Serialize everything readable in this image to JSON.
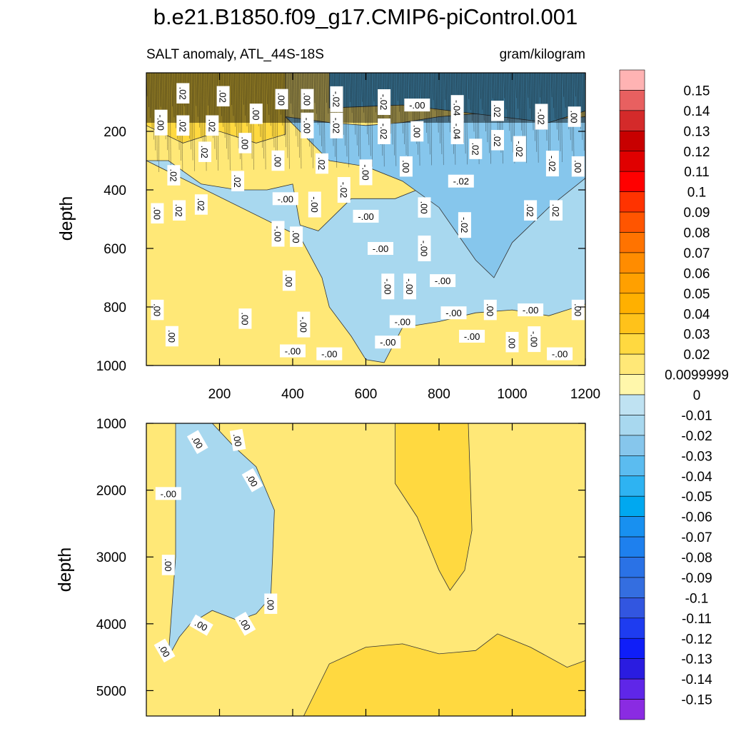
{
  "chart_data": {
    "type": "heatmap",
    "subtype": "filled-contour",
    "title": "b.e21.B1850.f09_g17.CMIP6-piControl.001",
    "subtitle_left": "SALT anomaly, ATL_44S-18S",
    "subtitle_right": "gram/kilogram",
    "xlabel": "",
    "x_range": [
      0,
      1200
    ],
    "x_ticks": [
      "200",
      "400",
      "600",
      "800",
      "1000",
      "1200"
    ],
    "x_tick_values": [
      200,
      400,
      600,
      800,
      1000,
      1200
    ],
    "panels": [
      {
        "name": "upper",
        "ylabel": "depth",
        "y_range": [
          0,
          1000
        ],
        "y_ticks": [
          "200",
          "400",
          "600",
          "800",
          "1000"
        ],
        "y_tick_values": [
          200,
          400,
          600,
          800,
          1000
        ],
        "bands": [
          {
            "value": -0.01,
            "top": [
              [
                0,
                300
              ],
              [
                60,
                300
              ],
              [
                150,
                380
              ],
              [
                250,
                400
              ],
              [
                330,
                400
              ],
              [
                400,
                380
              ],
              [
                420,
                520
              ],
              [
                470,
                540
              ],
              [
                560,
                430
              ],
              [
                680,
                430
              ],
              [
                760,
                390
              ],
              [
                830,
                350
              ],
              [
                900,
                330
              ],
              [
                1000,
                340
              ],
              [
                1100,
                330
              ],
              [
                1200,
                300
              ]
            ],
            "bottom": [
              [
                420,
                560
              ],
              [
                480,
                700
              ],
              [
                500,
                800
              ],
              [
                560,
                900
              ],
              [
                600,
                980
              ],
              [
                650,
                990
              ],
              [
                700,
                870
              ],
              [
                800,
                850
              ],
              [
                900,
                820
              ],
              [
                1000,
                810
              ],
              [
                1100,
                830
              ],
              [
                1150,
                810
              ],
              [
                1200,
                790
              ]
            ]
          },
          {
            "value": -0.02,
            "top": [
              [
                380,
                150
              ],
              [
                500,
                170
              ],
              [
                600,
                180
              ],
              [
                700,
                170
              ],
              [
                800,
                150
              ],
              [
                900,
                140
              ],
              [
                1000,
                150
              ],
              [
                1100,
                160
              ],
              [
                1200,
                150
              ]
            ],
            "bottom": [
              [
                500,
                300
              ],
              [
                600,
                320
              ],
              [
                700,
                370
              ],
              [
                800,
                460
              ],
              [
                900,
                640
              ],
              [
                950,
                700
              ],
              [
                1000,
                580
              ],
              [
                1100,
                460
              ],
              [
                1200,
                360
              ]
            ]
          },
          {
            "value": -0.03,
            "top": [
              [
                500,
                0
              ],
              [
                1200,
                0
              ]
            ],
            "bottom": [
              [
                500,
                120
              ],
              [
                700,
                110
              ],
              [
                900,
                140
              ],
              [
                1100,
                170
              ],
              [
                1200,
                130
              ]
            ]
          },
          {
            "value": 0.02,
            "top": [
              [
                0,
                0
              ],
              [
                380,
                0
              ]
            ],
            "bottom": [
              [
                0,
                180
              ],
              [
                100,
                240
              ],
              [
                200,
                200
              ],
              [
                300,
                240
              ],
              [
                380,
                210
              ]
            ]
          }
        ],
        "contour_labels": [
          {
            "text": ".02",
            "x": 100,
            "y": 70,
            "rot": 90
          },
          {
            "text": ".02",
            "x": 210,
            "y": 80,
            "rot": 90
          },
          {
            "text": ".00",
            "x": 370,
            "y": 90,
            "rot": 90
          },
          {
            "text": ".00",
            "x": 440,
            "y": 90,
            "rot": 90
          },
          {
            "text": "-.02",
            "x": 520,
            "y": 90,
            "rot": 90
          },
          {
            "text": "-.02",
            "x": 650,
            "y": 100,
            "rot": 90
          },
          {
            "text": "-.00",
            "x": 740,
            "y": 110,
            "rot": 0
          },
          {
            "text": "-.04",
            "x": 850,
            "y": 120,
            "rot": 90
          },
          {
            "text": ".00",
            "x": 300,
            "y": 140,
            "rot": 90
          },
          {
            "text": "-.00",
            "x": 40,
            "y": 170,
            "rot": 90
          },
          {
            "text": ".02",
            "x": 100,
            "y": 180,
            "rot": 90
          },
          {
            "text": ".02",
            "x": 180,
            "y": 180,
            "rot": 90
          },
          {
            "text": "-.00",
            "x": 440,
            "y": 180,
            "rot": 90
          },
          {
            "text": "-.02",
            "x": 520,
            "y": 180,
            "rot": 90
          },
          {
            "text": "-.02",
            "x": 650,
            "y": 200,
            "rot": 90
          },
          {
            "text": ".00",
            "x": 740,
            "y": 200,
            "rot": 90
          },
          {
            "text": ".02",
            "x": 960,
            "y": 130,
            "rot": 90
          },
          {
            "text": "-.02",
            "x": 1080,
            "y": 150,
            "rot": 90
          },
          {
            "text": ".00",
            "x": 1170,
            "y": 150,
            "rot": 90
          },
          {
            "text": "-.04",
            "x": 850,
            "y": 200,
            "rot": 90
          },
          {
            "text": ".02",
            "x": 900,
            "y": 260,
            "rot": 90
          },
          {
            "text": ".02",
            "x": 960,
            "y": 230,
            "rot": 90
          },
          {
            "text": "-.02",
            "x": 1020,
            "y": 260,
            "rot": 90
          },
          {
            "text": ".00",
            "x": 270,
            "y": 240,
            "rot": 90
          },
          {
            "text": ".02",
            "x": 160,
            "y": 270,
            "rot": 90
          },
          {
            "text": ".00",
            "x": 360,
            "y": 300,
            "rot": 90
          },
          {
            "text": ".02",
            "x": 480,
            "y": 310,
            "rot": 90
          },
          {
            "text": "-.00",
            "x": 600,
            "y": 340,
            "rot": 90
          },
          {
            "text": ".00",
            "x": 710,
            "y": 320,
            "rot": 90
          },
          {
            "text": "-.02",
            "x": 1110,
            "y": 310,
            "rot": 90
          },
          {
            "text": ".00",
            "x": 1180,
            "y": 320,
            "rot": 90
          },
          {
            "text": ".02",
            "x": 75,
            "y": 350,
            "rot": 90
          },
          {
            "text": ".02",
            "x": 250,
            "y": 370,
            "rot": 90
          },
          {
            "text": "-.02",
            "x": 540,
            "y": 400,
            "rot": 90
          },
          {
            "text": "-.02",
            "x": 860,
            "y": 370,
            "rot": 0
          },
          {
            "text": "-.00",
            "x": 380,
            "y": 430,
            "rot": 0
          },
          {
            "text": ".02",
            "x": 150,
            "y": 450,
            "rot": 90
          },
          {
            "text": "-.00",
            "x": 460,
            "y": 450,
            "rot": 90
          },
          {
            "text": "-.00",
            "x": 600,
            "y": 490,
            "rot": 0
          },
          {
            "text": ".00",
            "x": 30,
            "y": 480,
            "rot": 90
          },
          {
            "text": ".02",
            "x": 90,
            "y": 470,
            "rot": 90
          },
          {
            "text": ".00",
            "x": 760,
            "y": 460,
            "rot": 90
          },
          {
            "text": ".02",
            "x": 1050,
            "y": 470,
            "rot": 90
          },
          {
            "text": ".02",
            "x": 1120,
            "y": 470,
            "rot": 90
          },
          {
            "text": "-.02",
            "x": 870,
            "y": 520,
            "rot": 90
          },
          {
            "text": "-.00",
            "x": 360,
            "y": 550,
            "rot": 90
          },
          {
            "text": ".00",
            "x": 410,
            "y": 560,
            "rot": 90
          },
          {
            "text": "-.00",
            "x": 640,
            "y": 600,
            "rot": 0
          },
          {
            "text": "-.00",
            "x": 760,
            "y": 600,
            "rot": 90
          },
          {
            "text": ".00",
            "x": 390,
            "y": 710,
            "rot": 90
          },
          {
            "text": "-.00",
            "x": 810,
            "y": 710,
            "rot": 0
          },
          {
            "text": "-.00",
            "x": 660,
            "y": 730,
            "rot": 90
          },
          {
            "text": "-.00",
            "x": 720,
            "y": 730,
            "rot": 90
          },
          {
            "text": ".00",
            "x": 30,
            "y": 810,
            "rot": 90
          },
          {
            "text": ".00",
            "x": 270,
            "y": 840,
            "rot": 90
          },
          {
            "text": "-.00",
            "x": 840,
            "y": 820,
            "rot": 0
          },
          {
            "text": ".00",
            "x": 940,
            "y": 810,
            "rot": 90
          },
          {
            "text": "-.00",
            "x": 1050,
            "y": 810,
            "rot": 0
          },
          {
            "text": ".00",
            "x": 1180,
            "y": 810,
            "rot": 90
          },
          {
            "text": "-.00",
            "x": 700,
            "y": 850,
            "rot": 0
          },
          {
            "text": "-.00",
            "x": 430,
            "y": 860,
            "rot": 90
          },
          {
            "text": "-.00",
            "x": 890,
            "y": 900,
            "rot": 0
          },
          {
            "text": ".00",
            "x": 70,
            "y": 900,
            "rot": 90
          },
          {
            "text": "-.00",
            "x": 660,
            "y": 920,
            "rot": 0
          },
          {
            "text": ".00",
            "x": 1000,
            "y": 920,
            "rot": 90
          },
          {
            "text": "-.00",
            "x": 1060,
            "y": 910,
            "rot": 90
          },
          {
            "text": "-.00",
            "x": 400,
            "y": 950,
            "rot": 0
          },
          {
            "text": "-.00",
            "x": 500,
            "y": 960,
            "rot": 0
          },
          {
            "text": "-.00",
            "x": 1130,
            "y": 960,
            "rot": 0
          }
        ]
      },
      {
        "name": "lower",
        "ylabel": "depth",
        "y_range": [
          1000,
          5380
        ],
        "y_ticks": [
          "1000",
          "2000",
          "3000",
          "4000",
          "5000"
        ],
        "y_tick_values": [
          1000,
          2000,
          3000,
          4000,
          5000
        ],
        "bands": [
          {
            "value": -0.01,
            "top": [
              [
                80,
                1000
              ],
              [
                180,
                1000
              ],
              [
                240,
                1350
              ],
              [
                300,
                1650
              ],
              [
                350,
                2300
              ],
              [
                345,
                3000
              ],
              [
                340,
                3600
              ]
            ],
            "bottom": [
              [
                80,
                3000
              ],
              [
                60,
                4500
              ],
              [
                90,
                4200
              ],
              [
                120,
                4000
              ],
              [
                180,
                3800
              ],
              [
                250,
                3950
              ],
              [
                300,
                3850
              ],
              [
                340,
                3600
              ]
            ]
          },
          {
            "value": 0.02,
            "top": [
              [
                680,
                1000
              ],
              [
                880,
                1000
              ]
            ],
            "bottom": [
              [
                680,
                1900
              ],
              [
                740,
                2400
              ],
              [
                800,
                3200
              ],
              [
                830,
                3500
              ],
              [
                870,
                3200
              ],
              [
                890,
                2600
              ],
              [
                880,
                1000
              ]
            ]
          },
          {
            "value": 0.02,
            "top": [
              [
                430,
                5380
              ],
              [
                500,
                4600
              ],
              [
                600,
                4350
              ],
              [
                700,
                4300
              ],
              [
                800,
                4450
              ],
              [
                900,
                4400
              ],
              [
                960,
                4150
              ],
              [
                1050,
                4350
              ],
              [
                1150,
                4650
              ],
              [
                1200,
                4550
              ]
            ],
            "bottom": [
              [
                430,
                5380
              ],
              [
                1200,
                5380
              ]
            ]
          }
        ],
        "contour_labels": [
          {
            "text": "-.00",
            "x": 60,
            "y": 2050,
            "rot": 0
          },
          {
            "text": ".00",
            "x": 140,
            "y": 1280,
            "rot": 60
          },
          {
            "text": ".00",
            "x": 250,
            "y": 1250,
            "rot": 80
          },
          {
            "text": ".00",
            "x": 290,
            "y": 1850,
            "rot": 60
          },
          {
            "text": ".00",
            "x": 60,
            "y": 3120,
            "rot": 90
          },
          {
            "text": ".00",
            "x": 340,
            "y": 3700,
            "rot": 90
          },
          {
            "text": ".00",
            "x": 150,
            "y": 4020,
            "rot": 30
          },
          {
            "text": ".00",
            "x": 270,
            "y": 4000,
            "rot": 60
          },
          {
            "text": ".00",
            "x": 50,
            "y": 4400,
            "rot": 60
          }
        ]
      }
    ],
    "colorbar": {
      "levels": [
        "0.15",
        "0.14",
        "0.13",
        "0.12",
        "0.11",
        "0.1",
        "0.09",
        "0.08",
        "0.07",
        "0.06",
        "0.05",
        "0.04",
        "0.03",
        "0.02",
        "0.0099999",
        "0",
        "-0.01",
        "-0.02",
        "-0.03",
        "-0.04",
        "-0.05",
        "-0.06",
        "-0.07",
        "-0.08",
        "-0.09",
        "-0.1",
        "-0.11",
        "-0.12",
        "-0.13",
        "-0.14",
        "-0.15"
      ],
      "colors": [
        "#ffb3b3",
        "#e86060",
        "#d42a2a",
        "#c80000",
        "#e00000",
        "#ff0000",
        "#ff3300",
        "#ff5500",
        "#ff7300",
        "#ff8c00",
        "#ffa000",
        "#ffb000",
        "#ffc21a",
        "#ffd940",
        "#ffe877",
        "#fff7ab",
        "#bfe2f2",
        "#a8d8ef",
        "#86c6ec",
        "#5bbcf0",
        "#2eb3f2",
        "#00a8f0",
        "#1890f0",
        "#1e80ee",
        "#2a72e6",
        "#346ee0",
        "#3256e0",
        "#1e3cf0",
        "#0f1ef8",
        "#2a1ce0",
        "#5f26e8",
        "#8a2be2"
      ]
    }
  }
}
